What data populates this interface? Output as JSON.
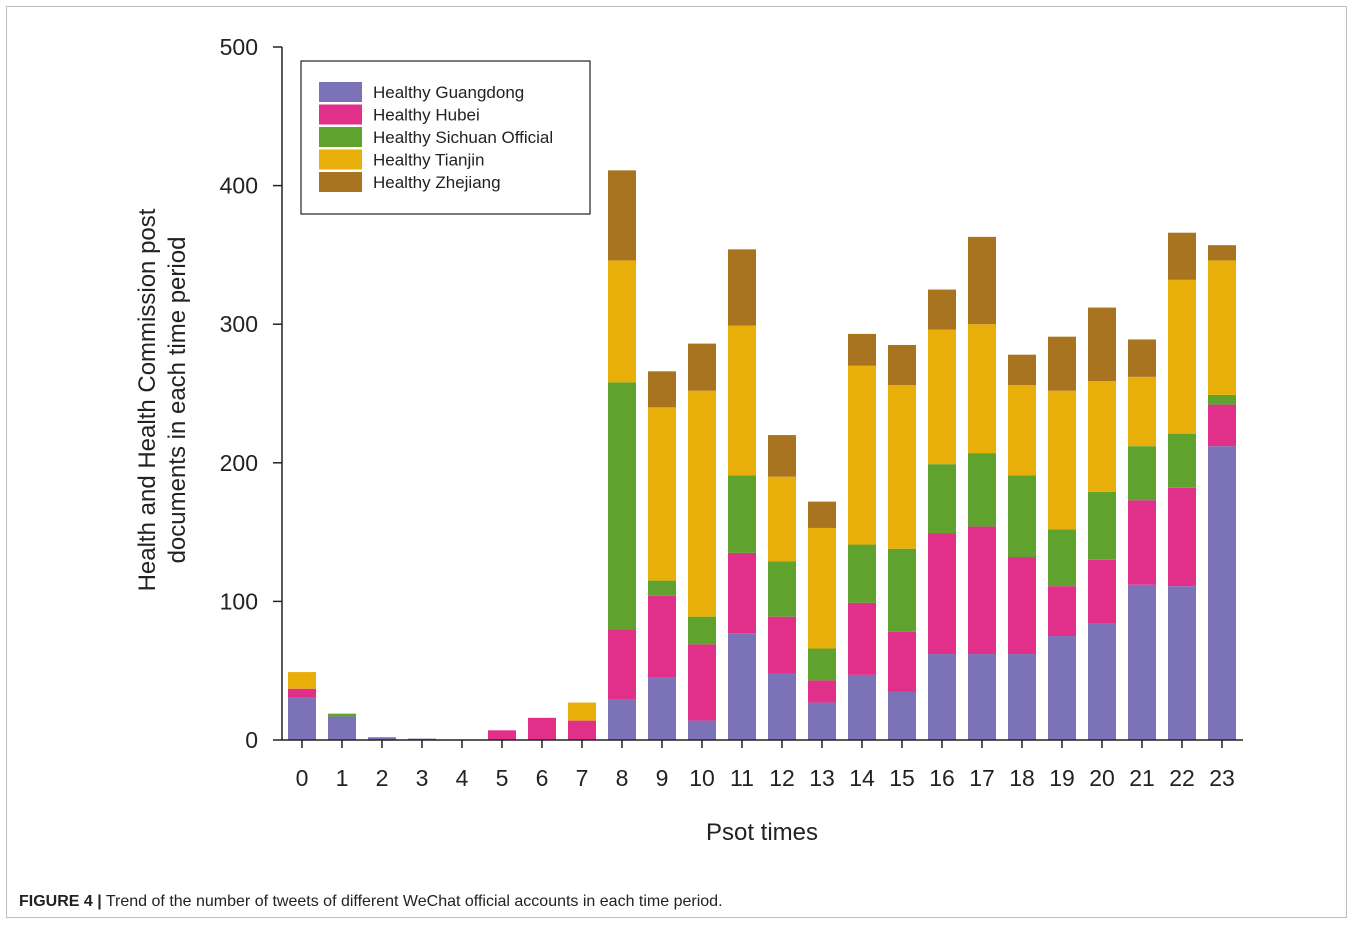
{
  "caption": {
    "label": "FIGURE 4 |",
    "text": " Trend of the number of tweets of different WeChat official accounts in each time period."
  },
  "chart_data": {
    "type": "bar",
    "stacked": true,
    "title": "",
    "xlabel": "Psot times",
    "ylabel_line1": "Health and Health Commission post",
    "ylabel_line2": "documents in each time period",
    "ylim": [
      0,
      500
    ],
    "yticks": [
      0,
      100,
      200,
      300,
      400,
      500
    ],
    "grid": false,
    "legend_position": "top-left",
    "categories": [
      "0",
      "1",
      "2",
      "3",
      "4",
      "5",
      "6",
      "7",
      "8",
      "9",
      "10",
      "11",
      "12",
      "13",
      "14",
      "15",
      "16",
      "17",
      "18",
      "19",
      "20",
      "21",
      "22",
      "23"
    ],
    "series": [
      {
        "name": "Healthy Guangdong",
        "color": "#7b72b8",
        "values": [
          31,
          17,
          2,
          1,
          0,
          0,
          0,
          0,
          29,
          45,
          14,
          77,
          48,
          27,
          47,
          35,
          62,
          62,
          62,
          75,
          84,
          112,
          111,
          212
        ]
      },
      {
        "name": "Healthy Hubei",
        "color": "#e0308a",
        "values": [
          6,
          0,
          0,
          0,
          0,
          7,
          16,
          14,
          51,
          59,
          55,
          58,
          41,
          16,
          52,
          43,
          87,
          92,
          70,
          36,
          46,
          61,
          71,
          30
        ]
      },
      {
        "name": "Healthy Sichuan Official",
        "color": "#5fa22e",
        "values": [
          0,
          2,
          0,
          0,
          0,
          0,
          0,
          0,
          178,
          11,
          20,
          56,
          40,
          23,
          42,
          60,
          50,
          53,
          59,
          41,
          49,
          39,
          39,
          7
        ]
      },
      {
        "name": "Healthy Tianjin",
        "color": "#e8ae0a",
        "values": [
          12,
          0,
          0,
          0,
          0,
          0,
          0,
          13,
          88,
          125,
          163,
          108,
          61,
          87,
          129,
          118,
          97,
          93,
          65,
          100,
          80,
          50,
          111,
          97
        ]
      },
      {
        "name": "Healthy Zhejiang",
        "color": "#a8741f",
        "values": [
          0,
          0,
          0,
          0,
          0,
          0,
          0,
          0,
          65,
          26,
          34,
          55,
          30,
          19,
          23,
          29,
          29,
          63,
          22,
          39,
          53,
          27,
          34,
          11
        ]
      }
    ]
  }
}
